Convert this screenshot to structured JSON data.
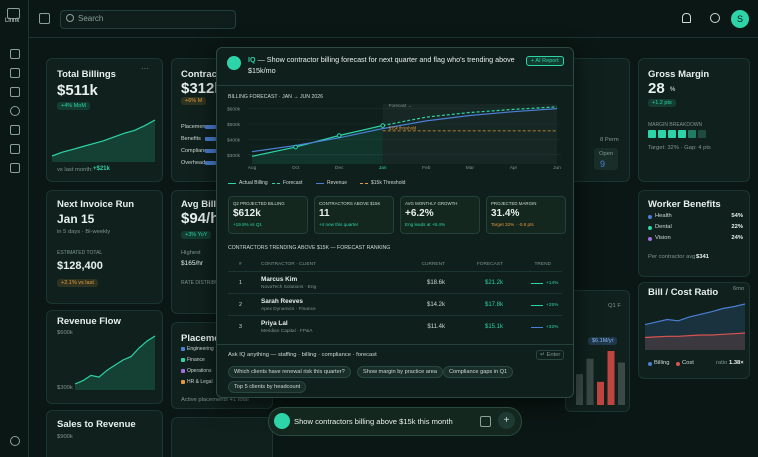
{
  "sidebar": {
    "brand": "Linnk"
  },
  "topbar": {
    "search": "Search",
    "avatar": "S"
  },
  "cards": {
    "total_billings": {
      "title": "Total Billings",
      "value": "$511k",
      "delta": "+4% MoM",
      "footer": "vs last month:",
      "footer_value": "+$21k",
      "trend": [
        20,
        24,
        27,
        30,
        33,
        36,
        40,
        44,
        47,
        52,
        58
      ]
    },
    "contractors": {
      "title": "Contracto",
      "value": "$312k",
      "delta": "+6% M",
      "rows": [
        "Placemen",
        "Benefits",
        "Complianc",
        "Overhead"
      ]
    },
    "headcount": {
      "perm": "8 Perm",
      "open_label": "Open",
      "open_value": "9"
    },
    "gross_margin": {
      "title": "Gross Margin",
      "value": "28",
      "unit": "%",
      "delta": "+1.2 pts",
      "breakdown_label": "MARGIN BREAKDOWN",
      "target": "Target: 32% · Gap: 4 pts"
    },
    "next_invoice": {
      "title": "Next Invoice Run",
      "date": "Jan 15",
      "sub": "in 5 days · Bi-weekly",
      "est_label": "ESTIMATED TOTAL",
      "est_value": "$128,400",
      "delta": "+2.1% vs last"
    },
    "avg_bill_rate": {
      "title": "Avg Bill R",
      "value": "$94/h",
      "delta": "+3% YoY",
      "high_label": "Highest",
      "high_value": "$165/hr",
      "dist_label": "RATE DISTRIBU"
    },
    "worker_benefits": {
      "title": "Worker Benefits",
      "items": [
        {
          "name": "Health",
          "value": "54%",
          "color": "#4a7fd6"
        },
        {
          "name": "Dental",
          "value": "22%",
          "color": "#2dd4a8"
        },
        {
          "name": "Vision",
          "value": "24%",
          "color": "#a36fe0"
        }
      ],
      "footer": "Per contractor avg",
      "footer_value": "$341"
    },
    "revenue_flow": {
      "title": "Revenue Flow",
      "ticks": [
        "$600k",
        "$300k"
      ],
      "values": [
        310,
        330,
        360,
        350,
        390,
        420,
        450,
        470,
        520,
        560,
        590
      ]
    },
    "placements": {
      "title": "Placeme",
      "legend": [
        {
          "name": "Engineering",
          "color": "#4a7fd6"
        },
        {
          "name": "Finance",
          "color": "#2dd4a8"
        },
        {
          "name": "Operations",
          "color": "#a36fe0"
        },
        {
          "name": "HR & Legal",
          "color": "#e39a3b"
        }
      ],
      "footer": "Active placements 41 total"
    },
    "annual": {
      "label": "Q1 F",
      "value": "$6.1M/yr",
      "bars": [
        40,
        60,
        30,
        70,
        55
      ],
      "colors": [
        "#3b4a47",
        "#3b4a47",
        "#c0443f",
        "#c0443f",
        "#3b4a47"
      ]
    },
    "bill_cost": {
      "title": "Bill / Cost Ratio",
      "range": "6mo",
      "legend": [
        {
          "name": "Billing",
          "color": "#4a7fd6"
        },
        {
          "name": "Cost",
          "color": "#d9534f"
        }
      ],
      "ratio_label": "ratio",
      "ratio": "1.38×",
      "billing": [
        30,
        34,
        38,
        36,
        42,
        46,
        50,
        55,
        58,
        62
      ],
      "cost": [
        10,
        11,
        12,
        12,
        13,
        14,
        14,
        15,
        16,
        17
      ]
    },
    "sales_to_revenue": {
      "title": "Sales to Revenue",
      "tick": "$900k"
    }
  },
  "modal": {
    "prompt_label": "IQ",
    "prompt": "— Show contractor billing forecast for next quarter and flag who's trending above $15k/mo",
    "badge": "+ AI Report",
    "chart": {
      "type": "line",
      "title": "BILLING FORECAST · JAN → JUN 2026",
      "categories": [
        "Aug",
        "Oct",
        "Dec",
        "Jan",
        "Feb",
        "Mar",
        "Apr",
        "Jun"
      ],
      "ylim": [
        240,
        630
      ],
      "yticks": [
        {
          "value": 600,
          "label": "$600k"
        },
        {
          "value": 500,
          "label": "$500k"
        },
        {
          "value": 400,
          "label": "$400k"
        },
        {
          "value": 300,
          "label": "$300k"
        }
      ],
      "series": [
        {
          "name": "Actual Billing",
          "color": "#2dd4a8",
          "dashed": false,
          "values": [
            290,
            350,
            425,
            490,
            null,
            null,
            null,
            null
          ]
        },
        {
          "name": "Forecast",
          "color": "#2dd4a8",
          "dashed": true,
          "values": [
            null,
            null,
            null,
            490,
            545,
            575,
            595,
            612
          ]
        },
        {
          "name": "Revenue",
          "color": "#4a7fd6",
          "dashed": false,
          "values": [
            320,
            360,
            410,
            470,
            520,
            555,
            580,
            600
          ]
        },
        {
          "name": "$15k Threshold",
          "color": "#e39a3b",
          "dashed": true,
          "values": [
            null,
            null,
            null,
            455,
            455,
            455,
            455,
            455
          ]
        }
      ],
      "annotations": [
        "Forecast →",
        "$15k threshold"
      ]
    },
    "stats": [
      {
        "label": "Q2 PROJECTED BILLING",
        "value": "$612k",
        "note": "+19.8% vs Q1"
      },
      {
        "label": "CONTRACTORS ABOVE $15K",
        "value": "11",
        "note": "+4 new this quarter"
      },
      {
        "label": "AVG MONTHLY GROWTH",
        "value": "+6.2%",
        "note": "Eng leads at +8.4%"
      },
      {
        "label": "PROJECTED MARGIN",
        "value": "31.4%",
        "note": "Target 32% · -0.6 pts"
      }
    ],
    "table": {
      "title": "CONTRACTORS TRENDING ABOVE $15K — FORECAST RANKING",
      "headers": [
        "#",
        "CONTRACTOR · CLIENT",
        "CURRENT",
        "FORECAST",
        "TREND"
      ],
      "rows": [
        [
          "1",
          "Marcus Kim",
          "NovaTech Solutions · Eng",
          "$18.6k",
          "$21.2k",
          "+14%"
        ],
        [
          "2",
          "Sarah Reeves",
          "Apex Dynamics · Finance",
          "$14.2k",
          "$17.8k",
          "+25%"
        ],
        [
          "3",
          "Priya Lal",
          "Meridian Capital · FP&A",
          "$11.4k",
          "$15.1k",
          "+32%"
        ]
      ]
    },
    "ask": "Ask IQ anything — staffing · billing · compliance · forecast",
    "enter": "↵ Enter",
    "chips": [
      "Which clients have renewal risk this quarter?",
      "Show margin by practice area",
      "Compliance gaps in Q1",
      "Top 5 clients by headcount"
    ]
  },
  "composer": {
    "text": "Show contractors billing above $15k this month"
  }
}
